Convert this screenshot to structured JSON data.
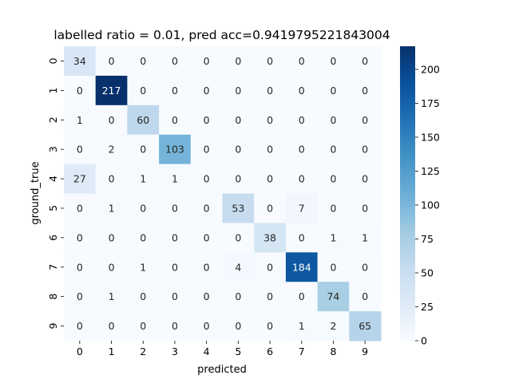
{
  "chart_data": {
    "type": "heatmap",
    "title": "labelled ratio = 0.01, pred acc=0.9419795221843004",
    "xlabel": "predicted",
    "ylabel": "ground_true",
    "x_categories": [
      "0",
      "1",
      "2",
      "3",
      "4",
      "5",
      "6",
      "7",
      "8",
      "9"
    ],
    "y_categories": [
      "0",
      "1",
      "2",
      "3",
      "4",
      "5",
      "6",
      "7",
      "8",
      "9"
    ],
    "matrix": [
      [
        34,
        0,
        0,
        0,
        0,
        0,
        0,
        0,
        0,
        0
      ],
      [
        0,
        217,
        0,
        0,
        0,
        0,
        0,
        0,
        0,
        0
      ],
      [
        1,
        0,
        60,
        0,
        0,
        0,
        0,
        0,
        0,
        0
      ],
      [
        0,
        2,
        0,
        103,
        0,
        0,
        0,
        0,
        0,
        0
      ],
      [
        27,
        0,
        1,
        1,
        0,
        0,
        0,
        0,
        0,
        0
      ],
      [
        0,
        1,
        0,
        0,
        0,
        53,
        0,
        7,
        0,
        0
      ],
      [
        0,
        0,
        0,
        0,
        0,
        0,
        38,
        0,
        1,
        1
      ],
      [
        0,
        0,
        1,
        0,
        0,
        4,
        0,
        184,
        0,
        0
      ],
      [
        0,
        1,
        0,
        0,
        0,
        0,
        0,
        0,
        74,
        0
      ],
      [
        0,
        0,
        0,
        0,
        0,
        0,
        0,
        1,
        2,
        65
      ]
    ],
    "colormap": "Blues",
    "colorbar": {
      "min": 0,
      "max": 217,
      "ticks": [
        0,
        25,
        50,
        75,
        100,
        125,
        150,
        175,
        200
      ]
    }
  }
}
